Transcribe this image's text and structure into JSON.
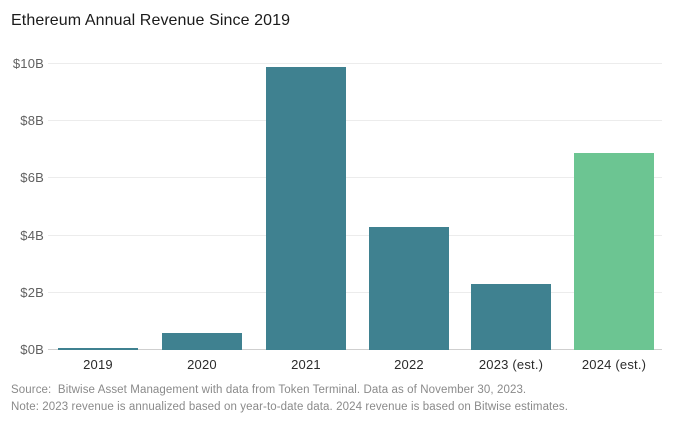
{
  "title": "Ethereum Annual Revenue Since 2019",
  "chart_data": {
    "type": "bar",
    "title": "Ethereum Annual Revenue Since 2019",
    "categories": [
      "2019",
      "2020",
      "2021",
      "2022",
      "2023 (est.)",
      "2024 (est.)"
    ],
    "values": [
      0.07,
      0.6,
      9.9,
      4.3,
      2.3,
      6.9
    ],
    "unit": "billions of USD",
    "xlabel": "",
    "ylabel": "",
    "ylim": [
      0,
      10
    ],
    "ytick_values": [
      0,
      2,
      4,
      6,
      8,
      10
    ],
    "ytick_labels": [
      "$0B",
      "$2B",
      "$4B",
      "$6B",
      "$8B",
      "$10B"
    ],
    "grid": true,
    "legend": "none",
    "bar_colors": [
      "#3F8190",
      "#3F8190",
      "#3F8190",
      "#3F8190",
      "#3F8190",
      "#6CC592"
    ]
  },
  "colors": {
    "bar_teal": "#3F8190",
    "bar_green": "#6CC592",
    "gridline": "#ececec",
    "axis_line": "#cfcfcf",
    "title_text": "#1b1b1b",
    "tick_text": "#616161",
    "footer_text": "#8a8a8a"
  },
  "footer": {
    "source": "Source:  Bitwise Asset Management with data from Token Terminal. Data as of November 30, 2023.",
    "note": "Note: 2023 revenue is annualized based on year-to-date data. 2024 revenue is based on Bitwise estimates."
  }
}
